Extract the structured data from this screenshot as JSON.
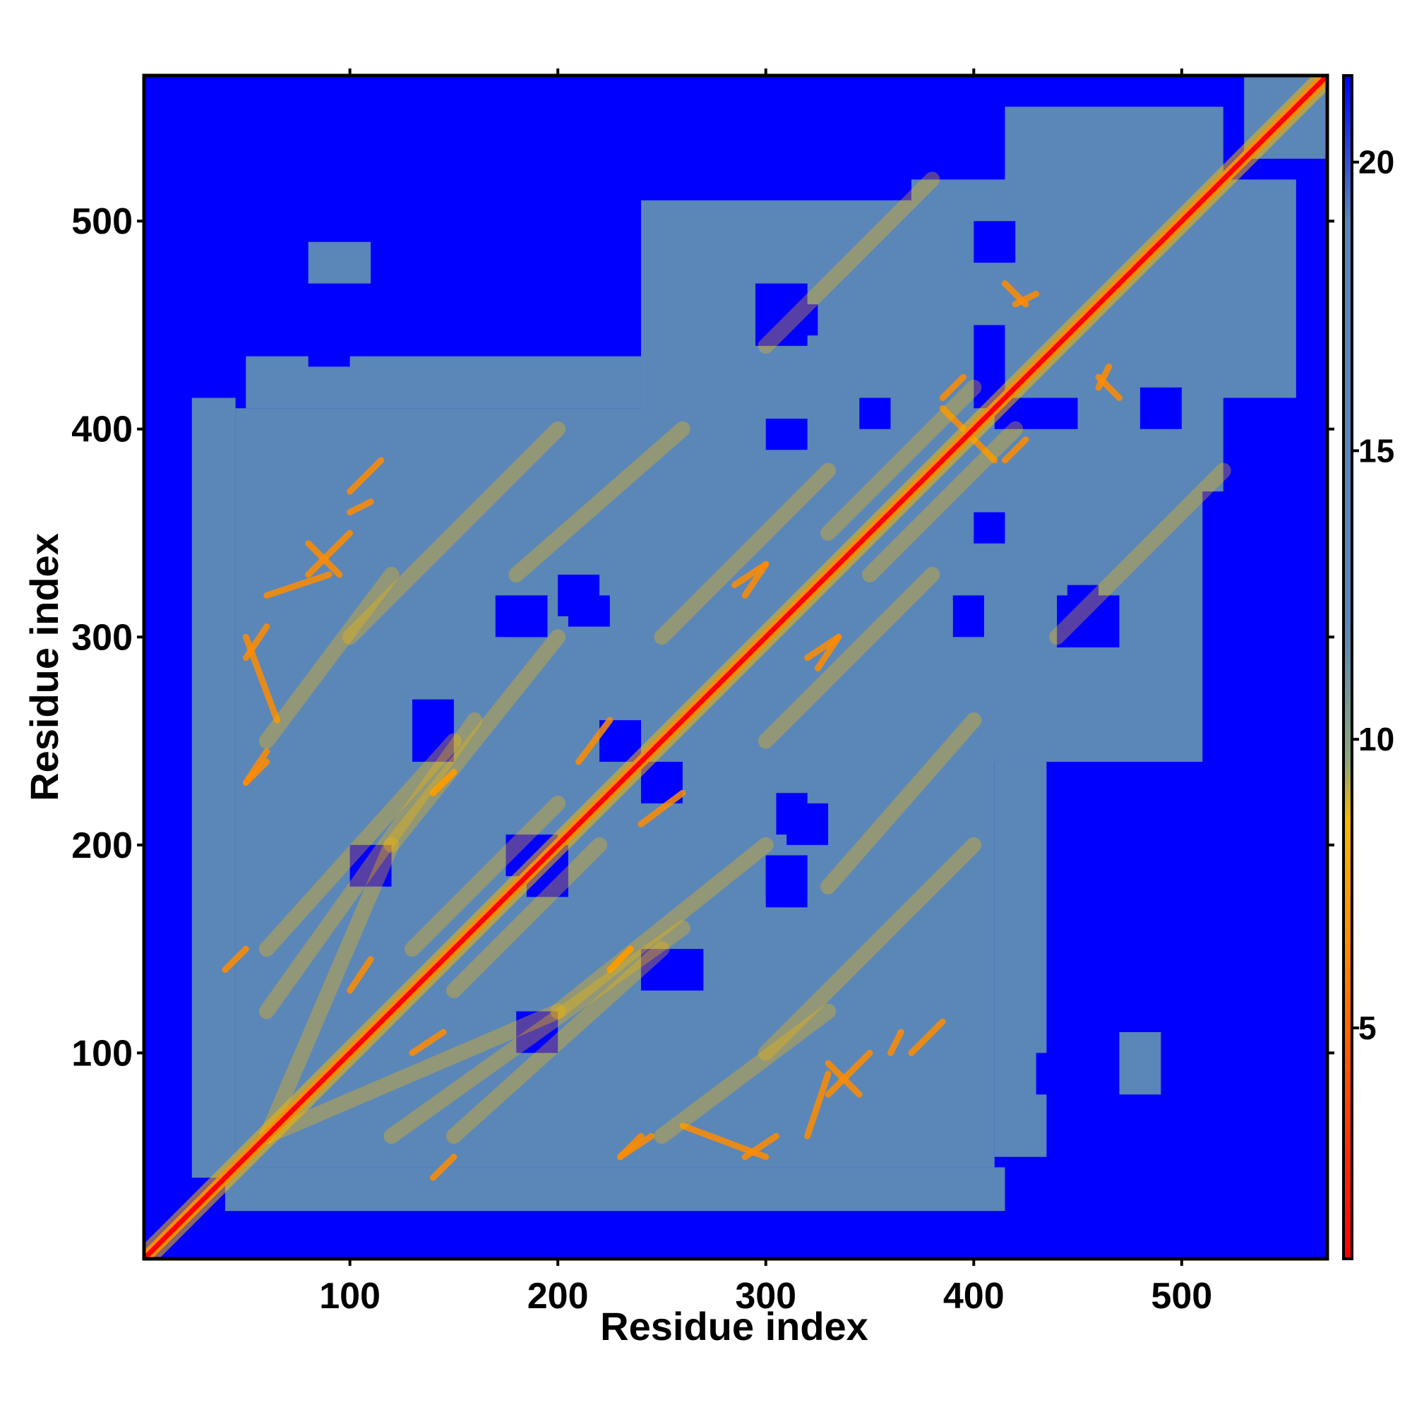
{
  "chart_data": {
    "type": "heatmap",
    "title": "",
    "xlabel": "Residue index",
    "ylabel": "Residue index",
    "xlim": [
      1,
      570
    ],
    "ylim": [
      1,
      570
    ],
    "x_ticks": [
      100,
      200,
      300,
      400,
      500
    ],
    "y_ticks": [
      100,
      200,
      300,
      400,
      500
    ],
    "x_tick_labels": [
      "100",
      "200",
      "300",
      "400",
      "500"
    ],
    "y_tick_labels": [
      "100",
      "200",
      "300",
      "400",
      "500"
    ],
    "colorbar": {
      "min": 1,
      "max": 21.5,
      "ticks": [
        5,
        10,
        15,
        20
      ],
      "tick_labels": [
        "5",
        "10",
        "15",
        "20"
      ],
      "color_stops": [
        {
          "value": 1,
          "color": "#ff0000"
        },
        {
          "value": 6.5,
          "color": "#ff8c00"
        },
        {
          "value": 8.6,
          "color": "#f5b800"
        },
        {
          "value": 9.6,
          "color": "#8fa67a"
        },
        {
          "value": 12,
          "color": "#5b86b8"
        },
        {
          "value": 19,
          "color": "#5b86b8"
        },
        {
          "value": 21.5,
          "color": "#0000ff"
        }
      ]
    },
    "matrix_description_values": {
      "background": 21.5,
      "inner_block_residues": [
        45,
        410
      ],
      "diagonal": 1
    },
    "grid": false,
    "legend": "colorbar-right"
  },
  "colors": {
    "background_blue": "#0000ff",
    "mid_steelblue": "#5b86b8",
    "contact_yellow": "#f5b800",
    "contact_orange": "#ff8c00",
    "diagonal_red": "#ff0000"
  }
}
